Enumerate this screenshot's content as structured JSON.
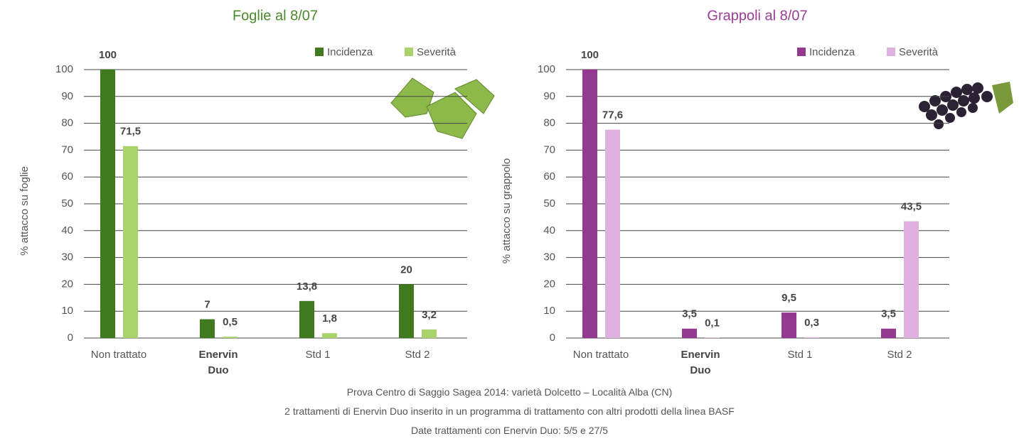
{
  "chart_data": [
    {
      "type": "bar",
      "title": "Foglie al 8/07",
      "y_label": "% attacco su foglie",
      "categories": [
        "Non trattato",
        "Enervin Duo",
        "Std 1",
        "Std 2"
      ],
      "bold_category_index": 1,
      "title_color": "#4a8a2c",
      "series": [
        {
          "name": "Incidenza",
          "color": "#3f7a1e",
          "values": [
            100,
            7,
            13.8,
            20
          ],
          "value_labels": [
            "100",
            "7",
            "13,8",
            "20"
          ]
        },
        {
          "name": "Severità",
          "color": "#a8d36a",
          "values": [
            71.5,
            0.5,
            1.8,
            3.2
          ],
          "value_labels": [
            "71,5",
            "0,5",
            "1,8",
            "3,2"
          ]
        }
      ],
      "ylim": [
        0,
        100
      ],
      "yticks": [
        0,
        10,
        20,
        30,
        40,
        50,
        60,
        70,
        80,
        90,
        100
      ],
      "grid": true,
      "legend": "top-right"
    },
    {
      "type": "bar",
      "title": "Grappoli al 8/07",
      "y_label": "% attacco su grappolo",
      "categories": [
        "Non trattato",
        "Enervin Duo",
        "Std 1",
        "Std 2"
      ],
      "bold_category_index": 1,
      "title_color": "#9b3d96",
      "series": [
        {
          "name": "Incidenza",
          "color": "#93398f",
          "values": [
            100,
            3.5,
            9.5,
            3.5
          ],
          "value_labels": [
            "100",
            "3,5",
            "9,5",
            "3,5"
          ]
        },
        {
          "name": "Severità",
          "color": "#deb1e0",
          "values": [
            77.6,
            0.1,
            0.3,
            43.5
          ],
          "value_labels": [
            "77,6",
            "0,1",
            "0,3",
            "43,5"
          ]
        }
      ],
      "ylim": [
        0,
        100
      ],
      "yticks": [
        0,
        10,
        20,
        30,
        40,
        50,
        60,
        70,
        80,
        90,
        100
      ],
      "grid": true,
      "legend": "top-right"
    }
  ],
  "caption": [
    "Prova Centro di Saggio Sagea 2014: varietà Dolcetto – Località Alba (CN)",
    "2 trattamenti di Enervin Duo inserito in un programma di trattamento con altri prodotti della linea BASF",
    "Date trattamenti con Enervin Duo: 5/5 e 27/5"
  ]
}
